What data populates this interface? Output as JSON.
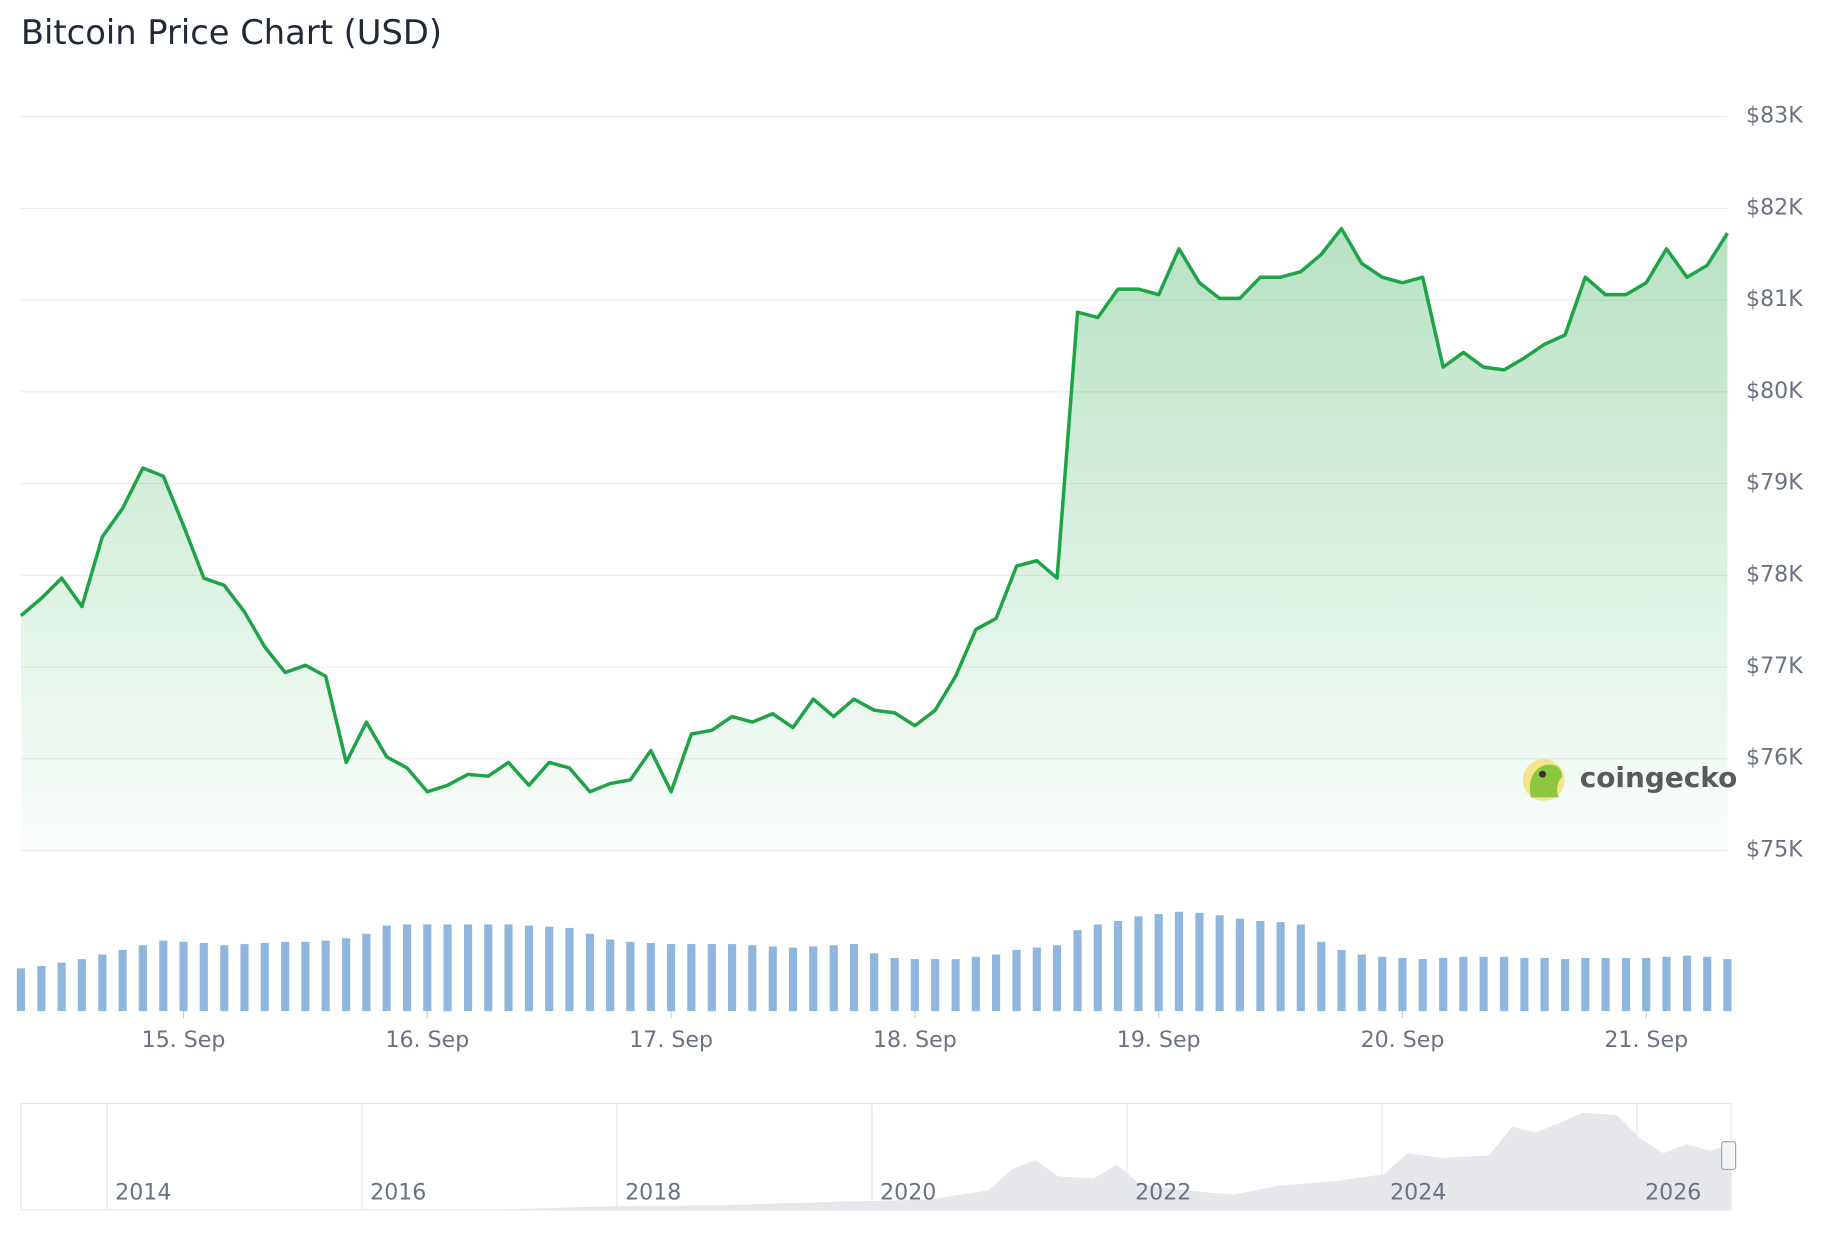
{
  "chart_data": {
    "type": "line",
    "title": "Bitcoin Price Chart (USD)",
    "brand": "coingecko",
    "color": "#1ea446",
    "volume_color": "#8fb6dc",
    "grid": true,
    "ylim": [
      75000,
      83000
    ],
    "yticks": [
      {
        "value": 75000,
        "label": "$75K"
      },
      {
        "value": 76000,
        "label": "$76K"
      },
      {
        "value": 77000,
        "label": "$77K"
      },
      {
        "value": 78000,
        "label": "$78K"
      },
      {
        "value": 79000,
        "label": "$79K"
      },
      {
        "value": 80000,
        "label": "$80K"
      },
      {
        "value": 81000,
        "label": "$81K"
      },
      {
        "value": 82000,
        "label": "$82K"
      },
      {
        "value": 83000,
        "label": "$83K"
      }
    ],
    "xlim": [
      14.333,
      21.333
    ],
    "xticks": [
      {
        "value": 15,
        "label": "15. Sep"
      },
      {
        "value": 16,
        "label": "16. Sep"
      },
      {
        "value": 17,
        "label": "17. Sep"
      },
      {
        "value": 18,
        "label": "18. Sep"
      },
      {
        "value": 19,
        "label": "19. Sep"
      },
      {
        "value": 20,
        "label": "20. Sep"
      },
      {
        "value": 21,
        "label": "21. Sep"
      }
    ],
    "x": [
      14.333,
      14.417,
      14.5,
      14.583,
      14.667,
      14.75,
      14.833,
      14.917,
      15,
      15.083,
      15.167,
      15.25,
      15.333,
      15.417,
      15.5,
      15.583,
      15.667,
      15.75,
      15.833,
      15.917,
      16,
      16.083,
      16.167,
      16.25,
      16.333,
      16.417,
      16.5,
      16.583,
      16.667,
      16.75,
      16.833,
      16.917,
      17,
      17.083,
      17.167,
      17.25,
      17.333,
      17.417,
      17.5,
      17.583,
      17.667,
      17.75,
      17.833,
      17.917,
      18,
      18.083,
      18.167,
      18.25,
      18.333,
      18.417,
      18.5,
      18.583,
      18.667,
      18.75,
      18.833,
      18.917,
      19,
      19.083,
      19.167,
      19.25,
      19.333,
      19.417,
      19.5,
      19.583,
      19.667,
      19.75,
      19.833,
      19.917,
      20,
      20.083,
      20.167,
      20.25,
      20.333,
      20.417,
      20.5,
      20.583,
      20.667,
      20.75,
      20.833,
      20.917,
      21,
      21.083,
      21.167,
      21.25,
      21.333
    ],
    "values": [
      77560,
      77750,
      77970,
      77660,
      78420,
      78730,
      79170,
      79080,
      78540,
      77970,
      77890,
      77600,
      77220,
      76940,
      77020,
      76900,
      75960,
      76400,
      76020,
      75900,
      75640,
      75710,
      75830,
      75810,
      75960,
      75710,
      75960,
      75900,
      75640,
      75730,
      75770,
      76090,
      75640,
      76270,
      76310,
      76460,
      76400,
      76490,
      76340,
      76650,
      76460,
      76650,
      76530,
      76500,
      76360,
      76530,
      76900,
      77410,
      77530,
      78100,
      78160,
      77970,
      80870,
      80810,
      81120,
      81120,
      81060,
      81560,
      81190,
      81020,
      81020,
      81250,
      81250,
      81310,
      81500,
      81780,
      81400,
      81250,
      81190,
      81250,
      80270,
      80430,
      80270,
      80240,
      80370,
      80520,
      80620,
      81250,
      81060,
      81060,
      81190,
      81560,
      81250,
      81380,
      81730
    ],
    "volume": [
      37,
      39,
      42,
      45,
      49,
      53,
      57,
      61,
      60,
      59,
      57,
      58,
      59,
      60,
      60,
      61,
      63,
      67,
      74,
      75,
      75,
      75,
      75,
      75,
      75,
      74,
      73,
      72,
      67,
      62,
      60,
      59,
      58,
      58,
      58,
      58,
      57,
      56,
      55,
      56,
      57,
      58,
      50,
      46,
      45,
      45,
      45,
      47,
      49,
      53,
      55,
      57,
      70,
      75,
      78,
      82,
      84,
      86,
      85,
      83,
      80,
      78,
      77,
      75,
      60,
      53,
      49,
      47,
      46,
      45,
      46,
      47,
      47,
      47,
      46,
      46,
      45,
      46,
      46,
      46,
      46,
      47,
      48,
      47,
      45
    ],
    "navigator_labels": [
      "2014",
      "2016",
      "2018",
      "2020",
      "2022",
      "2024",
      "2026"
    ]
  }
}
